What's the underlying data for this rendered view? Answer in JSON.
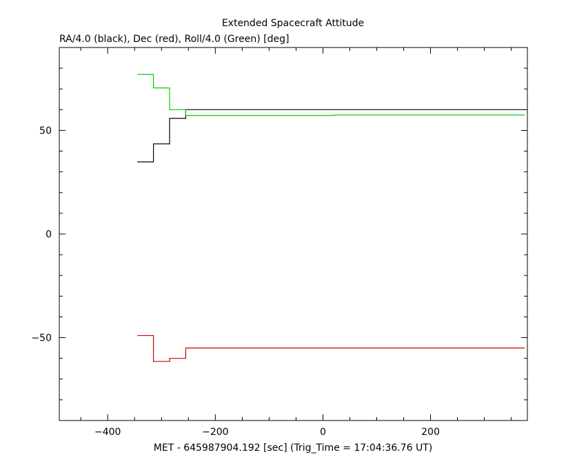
{
  "chart_data": {
    "type": "line",
    "title": "Extended Spacecraft Attitude",
    "subtitle": "RA/4.0 (black), Dec (red), Roll/4.0 (Green) [deg]",
    "xlabel": "MET - 645987904.192 [sec] (Trig_Time = 17:04:36.76 UT)",
    "ylabel": "",
    "xlim": [
      -490,
      380
    ],
    "ylim": [
      -90,
      90
    ],
    "x_ticks": [
      -400,
      -200,
      0,
      200
    ],
    "x_tick_labels": [
      "−400",
      "−200",
      "0",
      "200"
    ],
    "y_ticks": [
      -50,
      0,
      50
    ],
    "y_tick_labels": [
      "−50",
      "0",
      "50"
    ],
    "x_minor_step": 50,
    "y_minor_step": 10,
    "step": "post",
    "series": [
      {
        "color": "#000000",
        "x": [
          -345,
          -315,
          -285,
          -255,
          375
        ],
        "y": [
          34.8,
          43.5,
          55.8,
          60.0,
          60.0
        ]
      },
      {
        "color": "#cc0000",
        "x": [
          -345,
          -315,
          -285,
          -255,
          375
        ],
        "y": [
          -49.0,
          -61.5,
          -60.0,
          -55.0,
          -55.0
        ]
      },
      {
        "color": "#00cc00",
        "x": [
          -345,
          -315,
          -285,
          -255,
          20,
          375
        ],
        "y": [
          77.0,
          70.5,
          60.0,
          57.2,
          57.4,
          57.4
        ]
      }
    ]
  }
}
